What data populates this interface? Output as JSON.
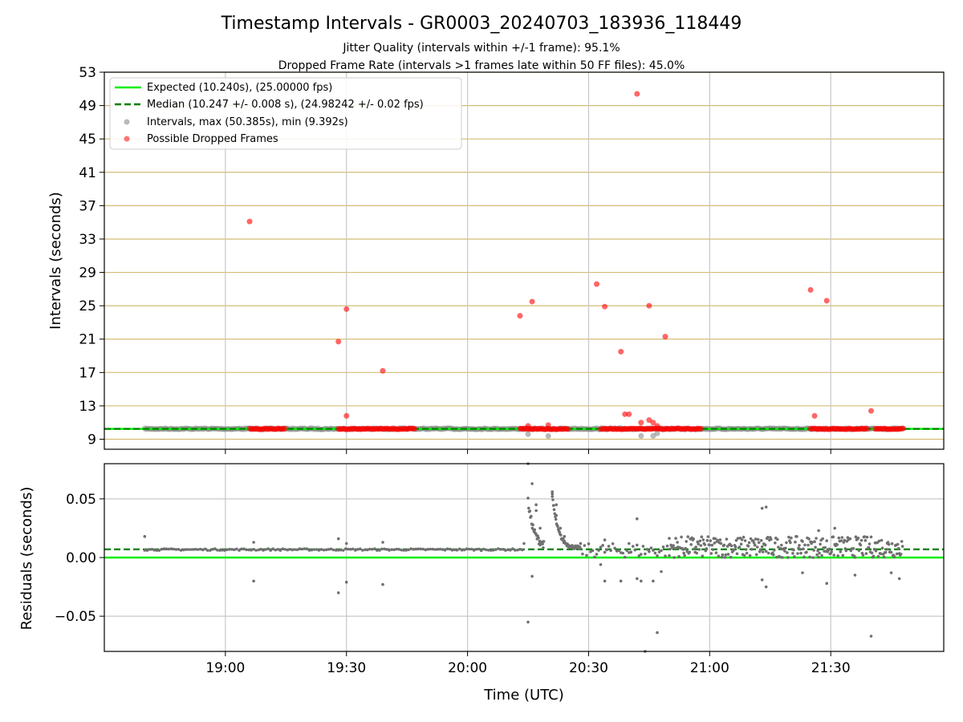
{
  "chart_data": [
    {
      "type": "scatter",
      "title": "Timestamp Intervals - GR0003_20240703_183936_118449",
      "subtitle_lines": [
        "Jitter Quality (intervals within +/-1 frame): 95.1%",
        "Dropped Frame Rate (intervals >1 frames late within 50 FF files): 45.0%"
      ],
      "ylabel": "Intervals (seconds)",
      "ylim": [
        7.8,
        53
      ],
      "yticks": [
        "9",
        "13",
        "17",
        "21",
        "25",
        "29",
        "33",
        "37",
        "41",
        "45",
        "49",
        "53"
      ],
      "ytick_values": [
        9,
        13,
        17,
        21,
        25,
        29,
        33,
        37,
        41,
        45,
        49,
        53
      ],
      "xlim": [
        "18:30",
        "21:58"
      ],
      "grid": true,
      "legend_position": "top-left",
      "legend": [
        "Expected (10.240s), (25.00000 fps)",
        "Median (10.247 +/- 0.008 s), (24.98242 +/- 0.02 fps)",
        "Intervals, max (50.385s), min (9.392s)",
        "Possible Dropped Frames"
      ],
      "expected_interval": 10.24,
      "median_interval": 10.247,
      "intervals_time_range": [
        "18:40",
        "21:48"
      ],
      "dropped_frame_bands": [
        [
          "19:06",
          "19:15"
        ],
        [
          "19:28",
          "19:47"
        ],
        [
          "20:13",
          "20:25"
        ],
        [
          "20:33",
          "20:58"
        ],
        [
          "21:25",
          "21:39"
        ],
        [
          "21:41",
          "21:48"
        ]
      ],
      "dropped_frames": [
        {
          "x": "19:06",
          "y": 35.1
        },
        {
          "x": "19:28",
          "y": 20.7
        },
        {
          "x": "19:30",
          "y": 24.6
        },
        {
          "x": "19:30",
          "y": 11.8
        },
        {
          "x": "19:39",
          "y": 17.2
        },
        {
          "x": "20:13",
          "y": 23.8
        },
        {
          "x": "20:15",
          "y": 10.6
        },
        {
          "x": "20:16",
          "y": 25.5
        },
        {
          "x": "20:20",
          "y": 10.7
        },
        {
          "x": "20:32",
          "y": 27.6
        },
        {
          "x": "20:34",
          "y": 24.9
        },
        {
          "x": "20:38",
          "y": 19.5
        },
        {
          "x": "20:39",
          "y": 12.0
        },
        {
          "x": "20:40",
          "y": 12.0
        },
        {
          "x": "20:42",
          "y": 50.4
        },
        {
          "x": "20:43",
          "y": 11.0
        },
        {
          "x": "20:45",
          "y": 25.0
        },
        {
          "x": "20:45",
          "y": 11.3
        },
        {
          "x": "20:46",
          "y": 11.0
        },
        {
          "x": "20:47",
          "y": 10.6
        },
        {
          "x": "20:49",
          "y": 21.3
        },
        {
          "x": "21:25",
          "y": 26.9
        },
        {
          "x": "21:26",
          "y": 11.8
        },
        {
          "x": "21:29",
          "y": 25.6
        },
        {
          "x": "21:40",
          "y": 12.4
        }
      ],
      "low_intervals": [
        {
          "x": "20:15",
          "y": 9.6
        },
        {
          "x": "20:20",
          "y": 9.39
        },
        {
          "x": "20:43",
          "y": 9.4
        },
        {
          "x": "20:46",
          "y": 9.4
        },
        {
          "x": "20:47",
          "y": 9.7
        }
      ]
    },
    {
      "type": "scatter",
      "ylabel": "Residuals (seconds)",
      "xlabel": "Time (UTC)",
      "ylim": [
        -0.08,
        0.08
      ],
      "yticks": [
        "−0.05",
        "0.00",
        "0.05"
      ],
      "ytick_values": [
        -0.05,
        0,
        0.05
      ],
      "xticks": [
        "19:00",
        "19:30",
        "20:00",
        "20:30",
        "21:00",
        "21:30"
      ],
      "xtick_values": [
        "19:00",
        "19:30",
        "20:00",
        "20:30",
        "21:00",
        "21:30"
      ],
      "xlim": [
        "18:30",
        "21:58"
      ],
      "grid": true,
      "expected_residual": 0.0,
      "median_residual": 0.007,
      "outliers": [
        {
          "x": "18:40",
          "y": 0.018
        },
        {
          "x": "19:07",
          "y": -0.02
        },
        {
          "x": "19:07",
          "y": 0.013
        },
        {
          "x": "19:28",
          "y": -0.03
        },
        {
          "x": "19:28",
          "y": 0.016
        },
        {
          "x": "19:30",
          "y": -0.021
        },
        {
          "x": "19:30",
          "y": 0.012
        },
        {
          "x": "19:39",
          "y": -0.023
        },
        {
          "x": "19:39",
          "y": 0.013
        },
        {
          "x": "20:14",
          "y": 0.012
        },
        {
          "x": "20:15",
          "y": -0.055
        },
        {
          "x": "20:15",
          "y": 0.08
        },
        {
          "x": "20:16",
          "y": 0.063
        },
        {
          "x": "20:16",
          "y": -0.016
        },
        {
          "x": "20:17",
          "y": 0.045
        },
        {
          "x": "20:17",
          "y": 0.04
        },
        {
          "x": "20:18",
          "y": 0.025
        },
        {
          "x": "20:21",
          "y": 0.056
        },
        {
          "x": "20:21",
          "y": 0.052
        },
        {
          "x": "20:22",
          "y": 0.045
        },
        {
          "x": "20:22",
          "y": 0.036
        },
        {
          "x": "20:23",
          "y": 0.025
        },
        {
          "x": "20:24",
          "y": 0.018
        },
        {
          "x": "20:33",
          "y": -0.006
        },
        {
          "x": "20:34",
          "y": -0.02
        },
        {
          "x": "20:34",
          "y": 0.015
        },
        {
          "x": "20:38",
          "y": -0.02
        },
        {
          "x": "20:40",
          "y": 0.012
        },
        {
          "x": "20:42",
          "y": 0.033
        },
        {
          "x": "20:42",
          "y": -0.018
        },
        {
          "x": "20:43",
          "y": -0.02
        },
        {
          "x": "20:44",
          "y": -0.08
        },
        {
          "x": "20:46",
          "y": -0.02
        },
        {
          "x": "20:47",
          "y": -0.064
        },
        {
          "x": "20:48",
          "y": -0.012
        },
        {
          "x": "21:13",
          "y": 0.042
        },
        {
          "x": "21:14",
          "y": 0.043
        },
        {
          "x": "21:13",
          "y": -0.019
        },
        {
          "x": "21:14",
          "y": -0.025
        },
        {
          "x": "21:23",
          "y": -0.013
        },
        {
          "x": "21:29",
          "y": -0.022
        },
        {
          "x": "21:27",
          "y": 0.023
        },
        {
          "x": "21:31",
          "y": 0.025
        },
        {
          "x": "21:36",
          "y": -0.015
        },
        {
          "x": "21:40",
          "y": -0.067
        },
        {
          "x": "21:47",
          "y": -0.018
        },
        {
          "x": "21:45",
          "y": -0.013
        }
      ]
    }
  ]
}
